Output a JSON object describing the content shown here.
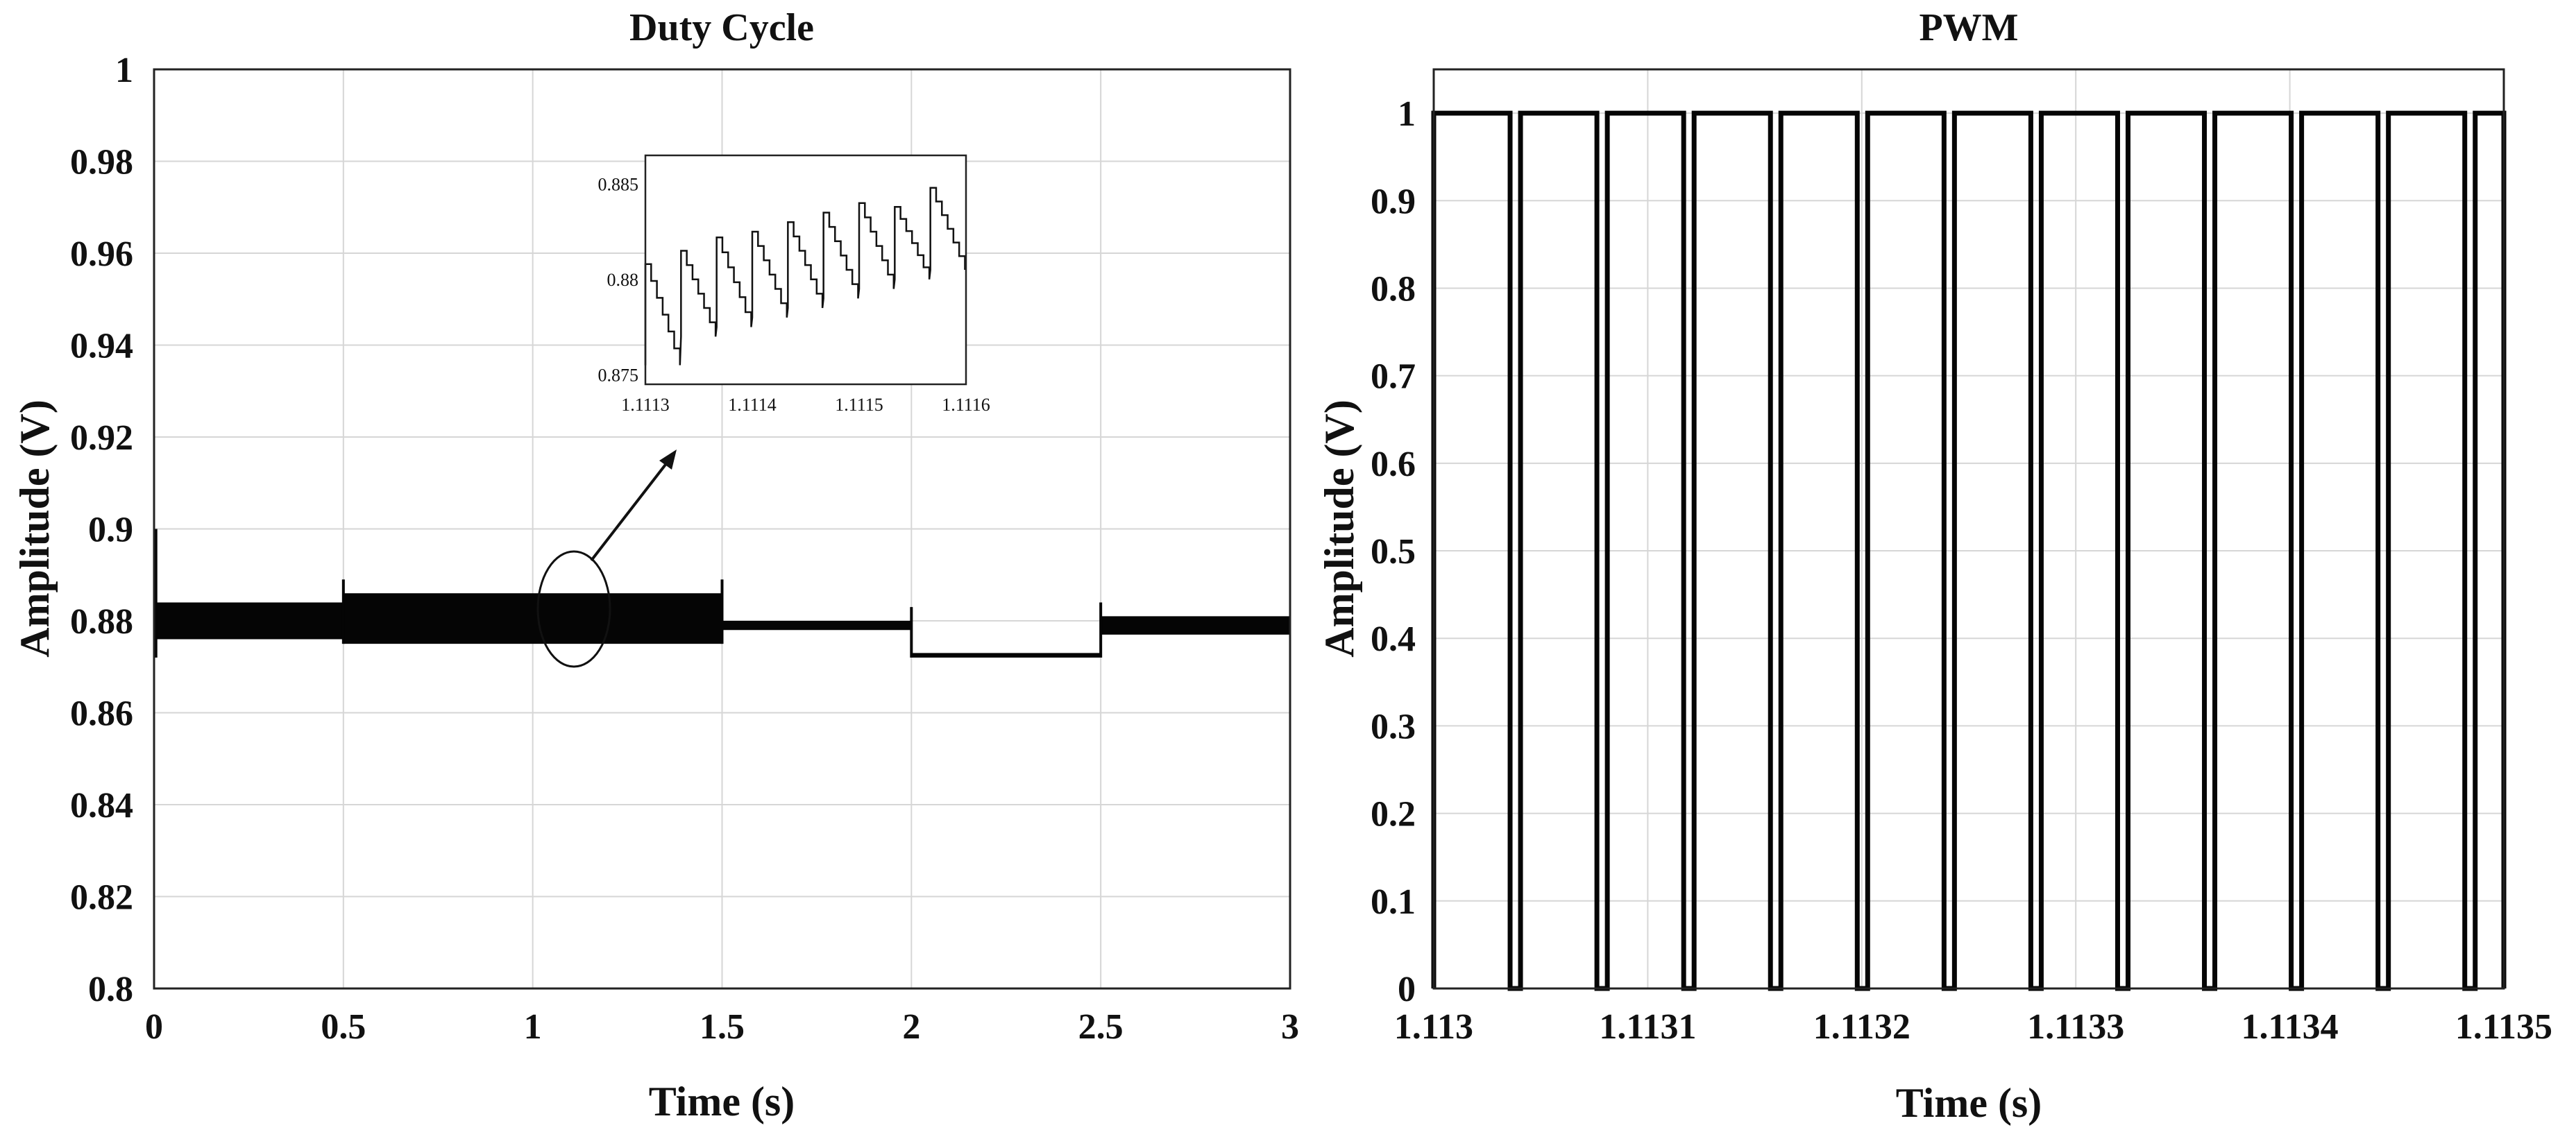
{
  "chart_data": [
    {
      "type": "line",
      "title": "Duty Cycle",
      "xlabel": "Time (s)",
      "ylabel": "Amplitude (V)",
      "xlim": [
        0,
        3
      ],
      "ylim": [
        0.8,
        1
      ],
      "xticks": [
        "0",
        "0.5",
        "1",
        "1.5",
        "2",
        "2.5",
        "3"
      ],
      "yticks": [
        "0.8",
        "0.82",
        "0.84",
        "0.86",
        "0.88",
        "0.9",
        "0.92",
        "0.94",
        "0.96",
        "0.98",
        "1"
      ],
      "grid": true,
      "segments": [
        {
          "t0": 0.0,
          "t1": 0.5,
          "min": 0.876,
          "max": 0.884
        },
        {
          "t0": 0.5,
          "t1": 1.5,
          "min": 0.875,
          "max": 0.886
        },
        {
          "t0": 1.5,
          "t1": 2.0,
          "min": 0.878,
          "max": 0.88
        },
        {
          "t0": 2.0,
          "t1": 2.5,
          "min": 0.872,
          "max": 0.873
        },
        {
          "t0": 2.5,
          "t1": 3.0,
          "min": 0.877,
          "max": 0.881
        }
      ],
      "inset": {
        "xlim": [
          1.1113,
          1.1116
        ],
        "ylim": [
          0.8745,
          0.8865
        ],
        "xticks": [
          "1.1113",
          "1.1114",
          "1.1115",
          "1.1116"
        ],
        "yticks": [
          "0.875",
          "0.88",
          "0.885"
        ],
        "teeth": [
          {
            "lo": 0.8755,
            "hi": 0.8808
          },
          {
            "lo": 0.877,
            "hi": 0.8815
          },
          {
            "lo": 0.8775,
            "hi": 0.8822
          },
          {
            "lo": 0.878,
            "hi": 0.8825
          },
          {
            "lo": 0.8785,
            "hi": 0.883
          },
          {
            "lo": 0.879,
            "hi": 0.8835
          },
          {
            "lo": 0.8795,
            "hi": 0.884
          },
          {
            "lo": 0.88,
            "hi": 0.8838
          },
          {
            "lo": 0.8805,
            "hi": 0.8848
          }
        ]
      }
    },
    {
      "type": "line",
      "title": "PWM",
      "xlabel": "Time (s)",
      "ylabel": "Amplitude (V)",
      "xlim": [
        1.113,
        1.1135
      ],
      "ylim": [
        0,
        1.05
      ],
      "xticks": [
        "1.113",
        "1.1131",
        "1.1132",
        "1.1133",
        "1.1134",
        "1.1135"
      ],
      "xtick_values": [
        1.113,
        1.1131,
        1.1132,
        1.1133,
        1.1134,
        1.1135
      ],
      "yticks": [
        "0",
        "0.1",
        "0.2",
        "0.3",
        "0.4",
        "0.5",
        "0.6",
        "0.7",
        "0.8",
        "0.9",
        "1"
      ],
      "grid": true,
      "high": 1,
      "low": 0,
      "period": 4e-05,
      "duty": 0.88,
      "first_rise": 1.113,
      "pulses": 12
    }
  ]
}
